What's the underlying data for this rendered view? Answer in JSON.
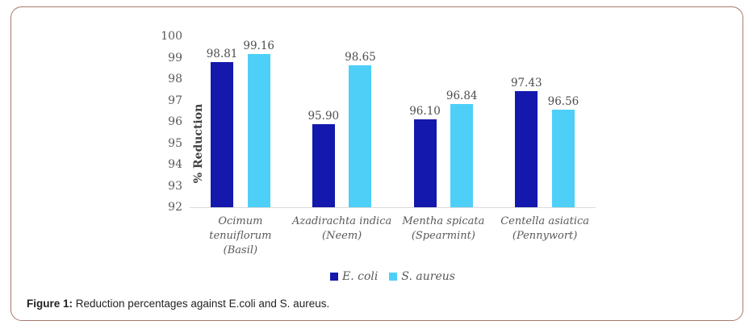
{
  "frame": {
    "border_color": "#a8796b"
  },
  "chart_data": {
    "type": "bar",
    "title": "",
    "xlabel": "",
    "ylabel": "% Reduction",
    "ylim": [
      92,
      100
    ],
    "yticks": [
      92,
      93,
      94,
      95,
      96,
      97,
      98,
      99,
      100
    ],
    "grid": false,
    "legend_position": "bottom",
    "categories": [
      [
        "Ocimum",
        "tenuiflorum",
        "(Basil)"
      ],
      [
        "Azadirachta indica",
        "(Neem)"
      ],
      [
        "Mentha spicata",
        "(Spearmint)"
      ],
      [
        "Centella asiatica",
        "(Pennywort)"
      ]
    ],
    "series": [
      {
        "name": "E. coli",
        "color": "#1418AC",
        "values": [
          98.81,
          95.9,
          96.1,
          97.43
        ]
      },
      {
        "name": "S. aureus",
        "color": "#4DCFF8",
        "values": [
          99.16,
          98.65,
          96.84,
          96.56
        ]
      }
    ],
    "axis_line_color": "#d9d9d9",
    "tick_color": "#595959",
    "data_label_color": "#4d4d4d"
  },
  "caption": {
    "label": "Figure 1:",
    "text": " Reduction percentages against E.coli and S. aureus."
  }
}
